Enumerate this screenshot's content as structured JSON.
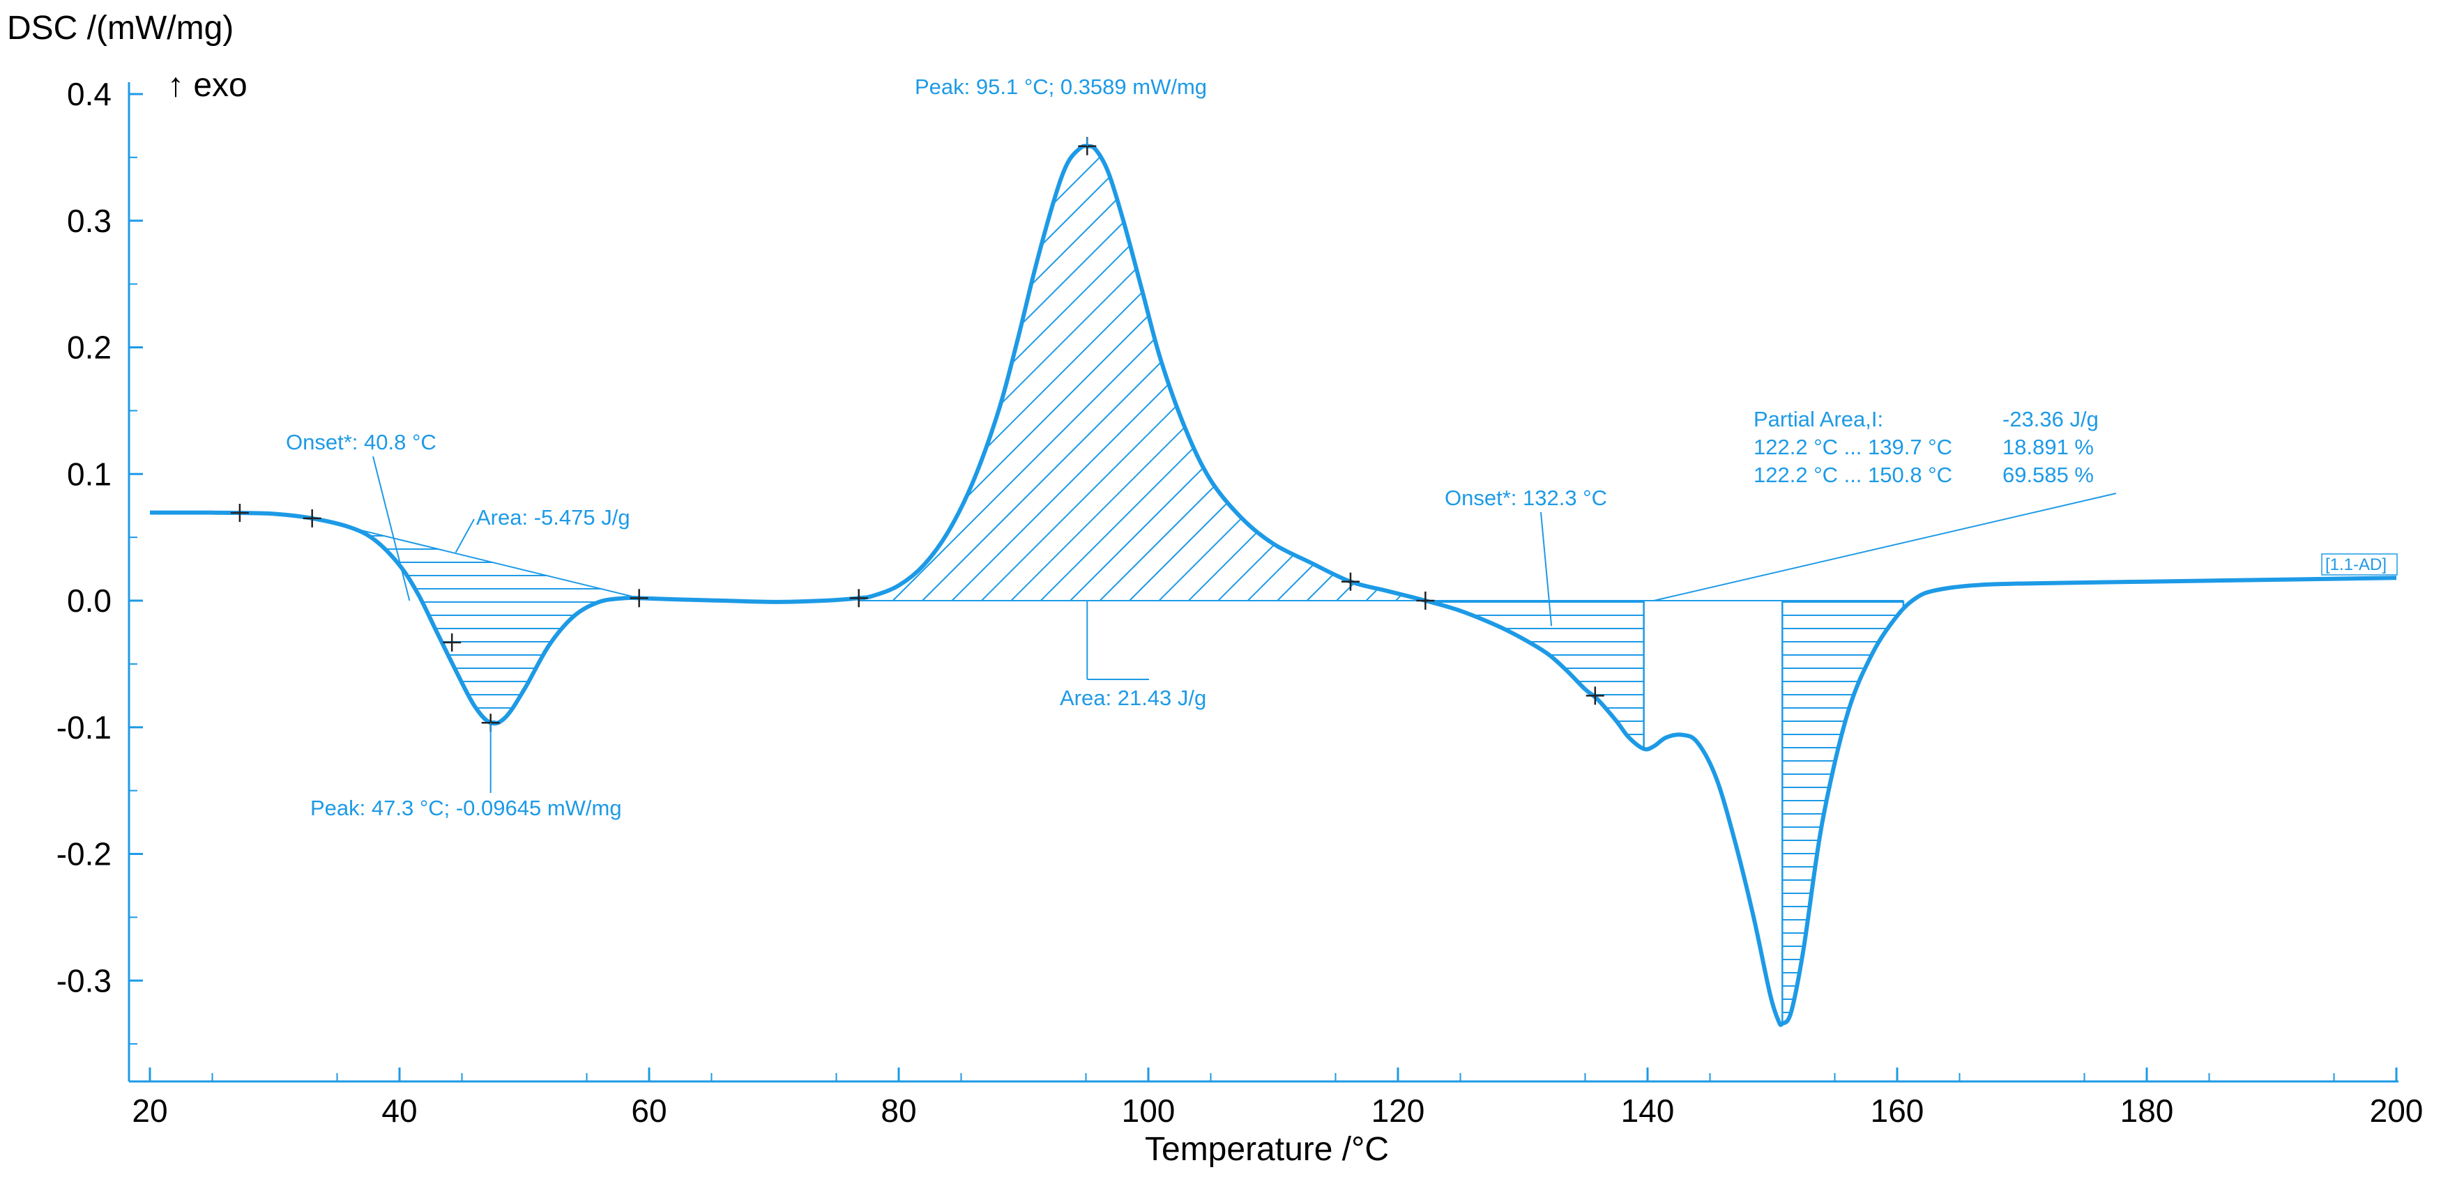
{
  "chart_data": {
    "type": "line",
    "title": "",
    "ylabel": "DSC /(mW/mg)",
    "xlabel": "Temperature /°C",
    "exo_label": "↑ exo",
    "curve_label": "[1.1-AD]",
    "xlim": [
      20,
      200
    ],
    "ylim": [
      -0.37,
      0.42
    ],
    "xticks": [
      20,
      40,
      60,
      80,
      100,
      120,
      140,
      160,
      180,
      200
    ],
    "yticks": [
      0.4,
      0.3,
      0.2,
      0.1,
      0.0,
      -0.1,
      -0.2,
      -0.3
    ],
    "ytick_labels": [
      "0.4",
      "0.3",
      "0.2",
      "0.1",
      "0.0",
      "-0.1",
      "-0.2",
      "-0.3"
    ],
    "colors": {
      "curve": "#1d9ae6",
      "axis": "#1d9ae6",
      "text": "#000000"
    },
    "series": [
      {
        "name": "DSC",
        "x": [
          20,
          25,
          27.2,
          30,
          33,
          36,
          38,
          40,
          41.5,
          43,
          44.5,
          46,
          47.3,
          48.5,
          50,
          52,
          54,
          56,
          58,
          59.2,
          62,
          66,
          70,
          74,
          76.8,
          78,
          80,
          82,
          84,
          86,
          88,
          89.5,
          91,
          92.5,
          93.5,
          94.5,
          95.1,
          95.8,
          96.8,
          98,
          99.5,
          101,
          103,
          105,
          107.5,
          110,
          113,
          116.2,
          119,
          122.2,
          125,
          128,
          130,
          132,
          133.5,
          135,
          136,
          137.5,
          138.5,
          139.7,
          140.5,
          141.5,
          142.8,
          144,
          145.5,
          147,
          148.5,
          149.8,
          150.5,
          150.8,
          151.5,
          152.5,
          154,
          156,
          158,
          160,
          161.5,
          163,
          166,
          170,
          180,
          190,
          200
        ],
        "y": [
          0.0695,
          0.0695,
          0.0693,
          0.0685,
          0.065,
          0.058,
          0.048,
          0.028,
          0.005,
          -0.025,
          -0.055,
          -0.083,
          -0.09645,
          -0.092,
          -0.07,
          -0.035,
          -0.012,
          -0.001,
          0.002,
          0.002,
          0.001,
          0.0,
          -0.001,
          0.0,
          0.002,
          0.004,
          0.012,
          0.028,
          0.055,
          0.095,
          0.15,
          0.205,
          0.265,
          0.318,
          0.345,
          0.357,
          0.3589,
          0.356,
          0.338,
          0.3,
          0.245,
          0.19,
          0.135,
          0.095,
          0.065,
          0.045,
          0.03,
          0.015,
          0.008,
          0.0,
          -0.008,
          -0.02,
          -0.03,
          -0.042,
          -0.055,
          -0.07,
          -0.078,
          -0.095,
          -0.108,
          -0.117,
          -0.115,
          -0.108,
          -0.106,
          -0.112,
          -0.14,
          -0.19,
          -0.25,
          -0.31,
          -0.332,
          -0.334,
          -0.325,
          -0.275,
          -0.175,
          -0.09,
          -0.042,
          -0.012,
          0.002,
          0.008,
          0.012,
          0.0135,
          0.015,
          0.0165,
          0.018
        ]
      }
    ],
    "markers": [
      {
        "x": 27.2,
        "y": 0.0693
      },
      {
        "x": 33,
        "y": 0.065
      },
      {
        "x": 44.2,
        "y": -0.033
      },
      {
        "x": 47.3,
        "y": -0.09645
      },
      {
        "x": 59.2,
        "y": 0.002
      },
      {
        "x": 76.8,
        "y": 0.002
      },
      {
        "x": 95.1,
        "y": 0.3589
      },
      {
        "x": 116.2,
        "y": 0.015
      },
      {
        "x": 122.2,
        "y": 0.0
      },
      {
        "x": 135.8,
        "y": -0.075
      }
    ],
    "areas": [
      {
        "x_start": 33,
        "x_end": 59.2,
        "hatch": "horizontal",
        "label": "Area: -5.475 J/g"
      },
      {
        "x_start": 76.8,
        "x_end": 122.2,
        "hatch": "diagonal",
        "label": "Area: 21.43 J/g"
      },
      {
        "x_start": 122.2,
        "x_end": 139.7,
        "hatch": "horizontal",
        "label": ""
      },
      {
        "x_start": 150.8,
        "x_end": 160.5,
        "hatch": "horizontal",
        "label": ""
      }
    ],
    "annotations": {
      "onset1": "Onset*: 40.8 °C",
      "area1": "Area: -5.475 J/g",
      "peak1": "Peak: 47.3 °C; -0.09645 mW/mg",
      "peak2": "Peak: 95.1 °C; 0.3589 mW/mg",
      "area2": "Area: 21.43 J/g",
      "onset3": "Onset*: 132.3 °C",
      "partial_title": "Partial Area,I:",
      "partial_value": "-23.36 J/g",
      "partial_row1_range": "122.2 °C ... 139.7 °C",
      "partial_row1_pct": "18.891 %",
      "partial_row2_range": "122.2 °C ... 150.8 °C",
      "partial_row2_pct": "69.585 %"
    }
  }
}
